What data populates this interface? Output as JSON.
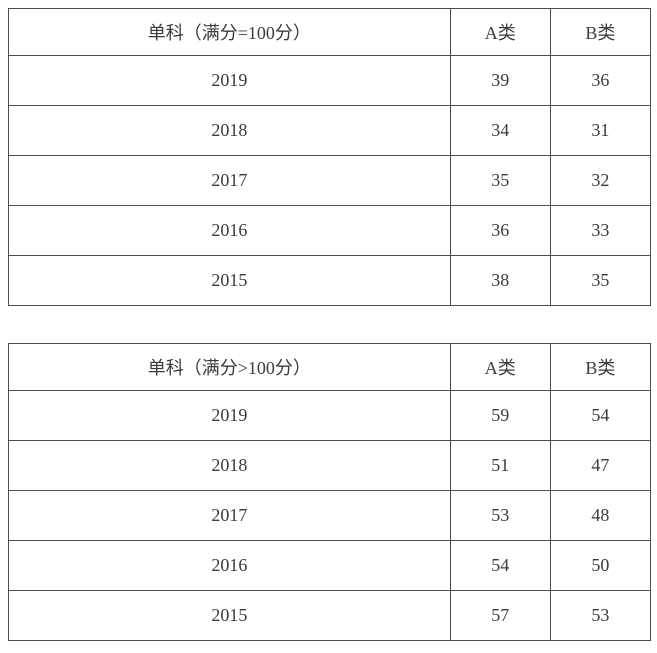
{
  "tables": [
    {
      "header": {
        "label": "单科（满分=100分）",
        "col_a": "A类",
        "col_b": "B类"
      },
      "rows": [
        {
          "year": "2019",
          "a": "39",
          "b": "36"
        },
        {
          "year": "2018",
          "a": "34",
          "b": "31"
        },
        {
          "year": "2017",
          "a": "35",
          "b": "32"
        },
        {
          "year": "2016",
          "a": "36",
          "b": "33"
        },
        {
          "year": "2015",
          "a": "38",
          "b": "35"
        }
      ]
    },
    {
      "header": {
        "label": "单科（满分>100分）",
        "col_a": "A类",
        "col_b": "B类"
      },
      "rows": [
        {
          "year": "2019",
          "a": "59",
          "b": "54"
        },
        {
          "year": "2018",
          "a": "51",
          "b": "47"
        },
        {
          "year": "2017",
          "a": "53",
          "b": "48"
        },
        {
          "year": "2016",
          "a": "54",
          "b": "50"
        },
        {
          "year": "2015",
          "a": "57",
          "b": "53"
        }
      ]
    }
  ],
  "colors": {
    "border": "#4d4d4d",
    "text": "#3b3b3b",
    "background": "#ffffff"
  }
}
